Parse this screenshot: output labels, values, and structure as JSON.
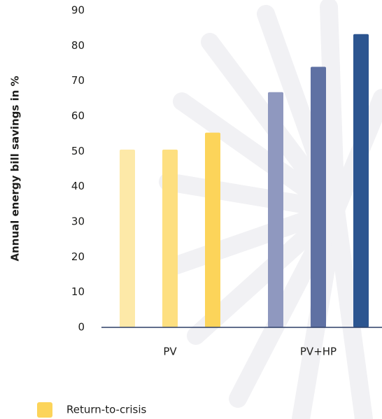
{
  "chart_data": {
    "type": "bar",
    "y_label": "Annual energy bill savings in %",
    "categories": [
      "PV",
      "PV+HP"
    ],
    "series": [
      {
        "colors": [
          "#fde9a8",
          "#8f98bf"
        ],
        "values": [
          50.5,
          66.8
        ]
      },
      {
        "colors": [
          "#fddf80",
          "#5f71a3"
        ],
        "values": [
          50.5,
          74
        ]
      },
      {
        "name": "Return-to-crisis",
        "colors": [
          "#fcd45a",
          "#2c5590"
        ],
        "values": [
          55.3,
          83.3
        ]
      }
    ],
    "ylim": [
      0,
      90
    ],
    "yticks": [
      0,
      10,
      20,
      30,
      40,
      50,
      60,
      70,
      80,
      90
    ]
  }
}
